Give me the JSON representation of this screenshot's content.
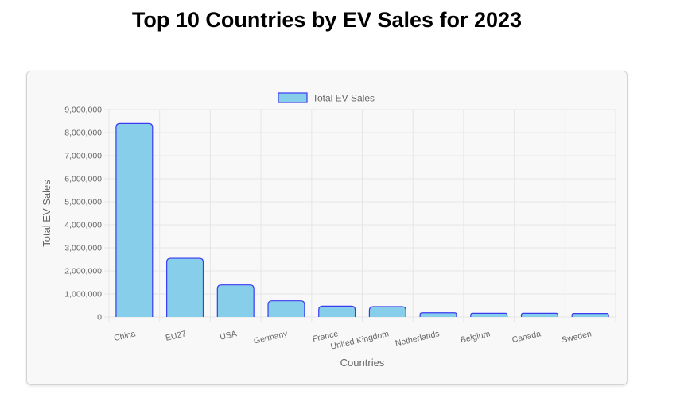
{
  "page": {
    "title": "Top 10 Countries by EV Sales for 2023"
  },
  "chart_data": {
    "type": "bar",
    "title": "Top 10 Countries by EV Sales for 2023",
    "xlabel": "Countries",
    "ylabel": "Total EV Sales",
    "ylim": [
      0,
      9000000
    ],
    "yticks": [
      0,
      1000000,
      2000000,
      3000000,
      4000000,
      5000000,
      6000000,
      7000000,
      8000000,
      9000000
    ],
    "ytick_labels": [
      "0",
      "1,000,000",
      "2,000,000",
      "3,000,000",
      "4,000,000",
      "5,000,000",
      "6,000,000",
      "7,000,000",
      "8,000,000",
      "9,000,000"
    ],
    "categories": [
      "China",
      "EU27",
      "USA",
      "Germany",
      "France",
      "United Kingdom",
      "Netherlands",
      "Belgium",
      "Canada",
      "Sweden"
    ],
    "series": [
      {
        "name": "Total EV Sales",
        "values": [
          8400000,
          2550000,
          1390000,
          700000,
          470000,
          450000,
          180000,
          160000,
          160000,
          150000
        ]
      }
    ],
    "grid": true,
    "legend_position": "top",
    "colors": {
      "bar_fill": "#87ceeb",
      "bar_border": "#3b3bf0",
      "grid": "#e6e6e6",
      "text": "#666666"
    }
  }
}
